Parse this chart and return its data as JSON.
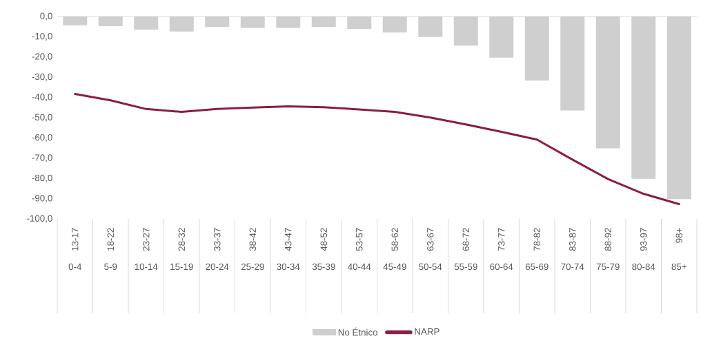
{
  "chart_data": {
    "type": "bar",
    "categories": [
      "0-4",
      "5-9",
      "10-14",
      "15-19",
      "20-24",
      "25-29",
      "30-34",
      "35-39",
      "40-44",
      "45-49",
      "50-54",
      "55-59",
      "60-64",
      "65-69",
      "70-74",
      "75-79",
      "80-84",
      "85+"
    ],
    "series": [
      {
        "name": "No Étnico",
        "color": "#d0cfcf",
        "values": [
          -4.3,
          -4.8,
          -6.5,
          -7.4,
          -5.2,
          -5.6,
          -5.6,
          -5.2,
          -6.1,
          -7.9,
          -10.1,
          -14.4,
          -20.3,
          -31.6,
          -46.4,
          -65.1,
          -80.2,
          -90.2
        ]
      },
      {
        "name": "NARP",
        "type": "line",
        "color": "#8c1c40",
        "values": [
          -38.3,
          -41.4,
          -45.7,
          -47.1,
          -45.7,
          -45.0,
          -44.4,
          -44.8,
          -45.9,
          -47.1,
          -49.9,
          -53.3,
          -57.0,
          -60.8,
          -70.7,
          -80.3,
          -87.6,
          -92.7
        ]
      }
    ],
    "ylim": [
      -100,
      0
    ],
    "yticks": [
      {
        "value": 0,
        "label": "0,0"
      },
      {
        "value": -10,
        "label": "-10,0"
      },
      {
        "value": -20,
        "label": "-20,0"
      },
      {
        "value": -30,
        "label": "-30,0"
      },
      {
        "value": -40,
        "label": "-40,0"
      },
      {
        "value": -50,
        "label": "-50,0"
      },
      {
        "value": -60,
        "label": "-60,0"
      },
      {
        "value": -70,
        "label": "-70,0"
      },
      {
        "value": -80,
        "label": "-80,0"
      },
      {
        "value": -90,
        "label": "-90,0"
      },
      {
        "value": -100,
        "label": "-100,0"
      }
    ],
    "legend": "bottom",
    "annotations": [
      "13-17",
      "18-22",
      "23-27",
      "28-32",
      "33-37",
      "38-42",
      "43-47",
      "48-52",
      "53-57",
      "58-62",
      "63-67",
      "68-72",
      "73-77",
      "78-82",
      "83-87",
      "88-92",
      "93-97",
      "98+"
    ]
  }
}
